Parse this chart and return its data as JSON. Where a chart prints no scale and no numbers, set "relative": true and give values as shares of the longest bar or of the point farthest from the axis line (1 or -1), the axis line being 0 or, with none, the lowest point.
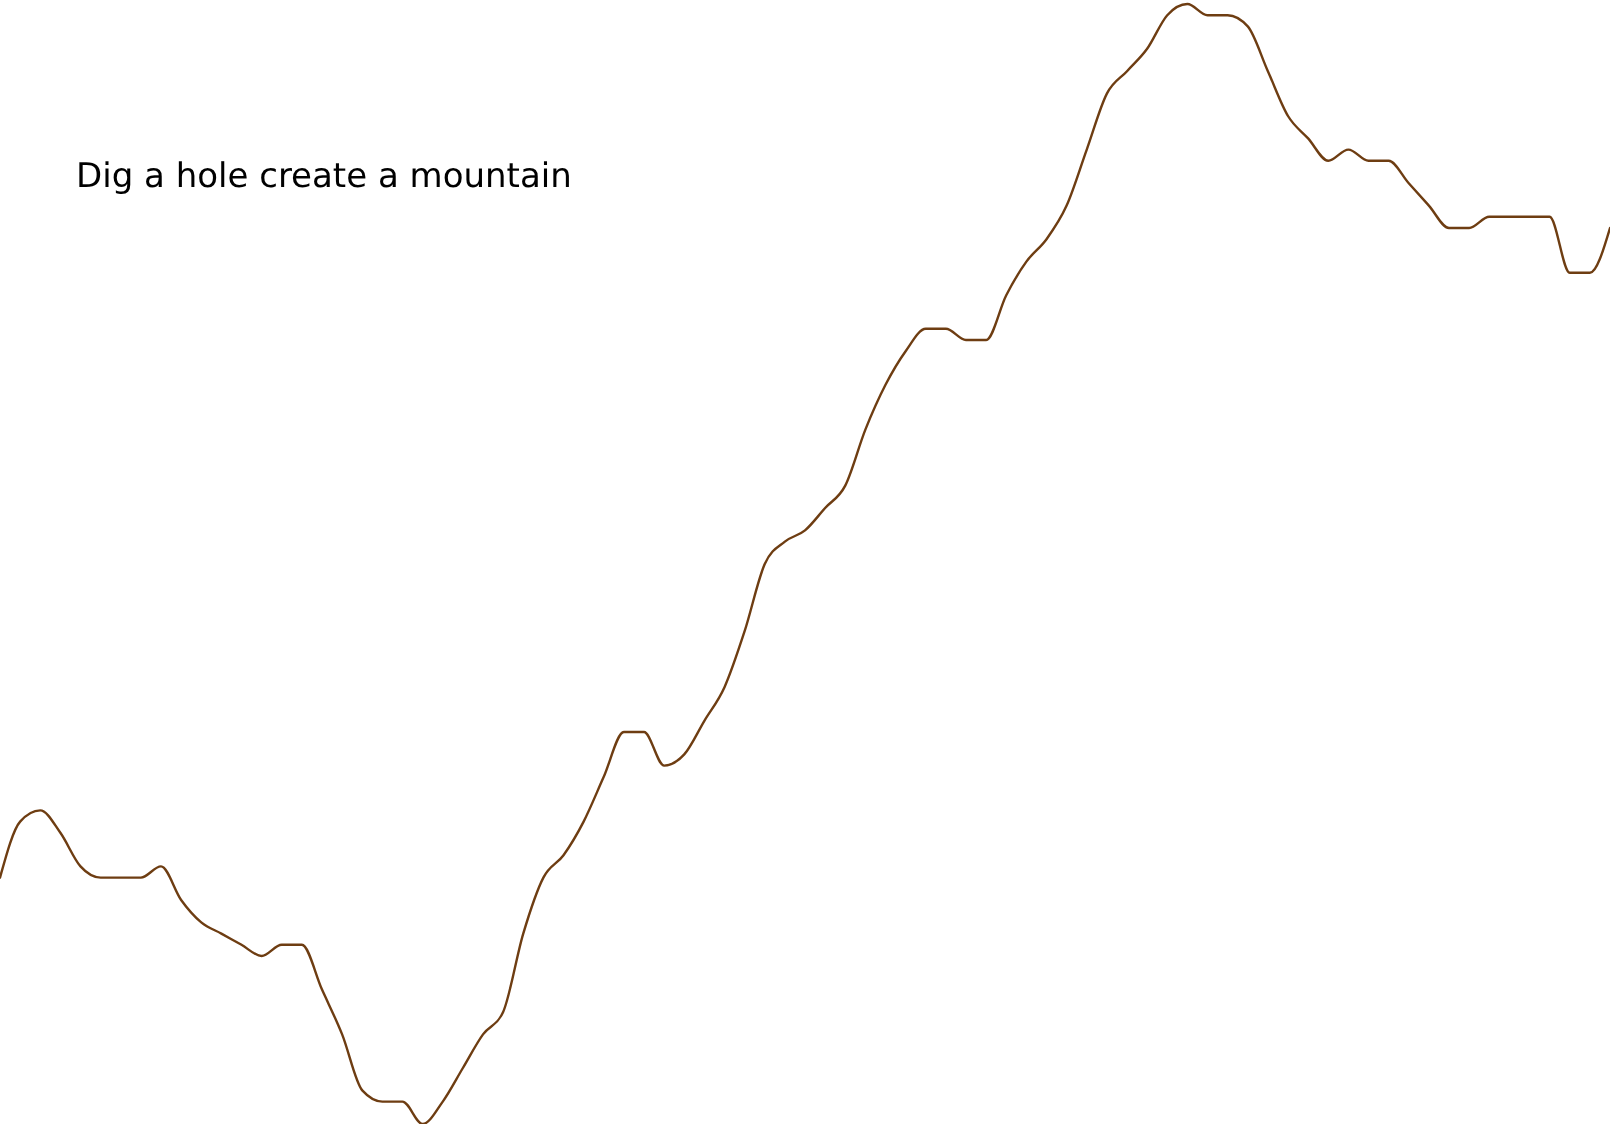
{
  "chart_data": {
    "type": "line",
    "title": "Dig a hole create a mountain",
    "relative": true,
    "legend": false,
    "tick_labels": false,
    "marker": "none",
    "line_style": "solid",
    "categories": [
      null,
      null,
      null,
      null,
      null,
      null,
      null,
      null,
      null,
      null,
      null,
      null,
      null,
      null,
      null,
      null,
      null,
      null,
      null,
      null,
      null,
      null,
      null,
      null,
      null,
      null,
      null,
      null,
      null,
      null,
      null,
      null,
      null,
      null,
      null,
      null,
      null,
      null,
      null,
      null,
      null,
      null,
      null,
      null,
      null,
      null,
      null,
      null,
      null,
      null,
      null,
      null,
      null,
      null,
      null,
      null,
      null,
      null,
      null,
      null,
      null,
      null,
      null,
      null,
      null,
      null,
      null,
      null,
      null,
      null,
      null,
      null,
      null,
      null,
      null,
      null,
      null,
      null,
      null,
      null,
      null
    ],
    "series": [
      {
        "color": "#6e3d12",
        "values": [
          0.22,
          0.27,
          0.28,
          0.26,
          0.23,
          0.22,
          0.22,
          0.22,
          0.23,
          0.2,
          0.18,
          0.17,
          0.16,
          0.15,
          0.16,
          0.16,
          0.12,
          0.08,
          0.03,
          0.02,
          0.02,
          0,
          0.02,
          0.05,
          0.08,
          0.1,
          0.17,
          0.22,
          0.24,
          0.27,
          0.31,
          0.35,
          0.35,
          0.32,
          0.33,
          0.36,
          0.39,
          0.44,
          0.5,
          0.52,
          0.53,
          0.55,
          0.57,
          0.62,
          0.66,
          0.69,
          0.71,
          0.71,
          0.7,
          0.7,
          0.74,
          0.77,
          0.79,
          0.82,
          0.87,
          0.92,
          0.94,
          0.96,
          0.99,
          1,
          0.99,
          0.99,
          0.98,
          0.94,
          0.9,
          0.88,
          0.86,
          0.87,
          0.86,
          0.86,
          0.84,
          0.82,
          0.8,
          0.8,
          0.81,
          0.81,
          0.81,
          0.81,
          0.76,
          0.76,
          0.8
        ]
      }
    ]
  }
}
